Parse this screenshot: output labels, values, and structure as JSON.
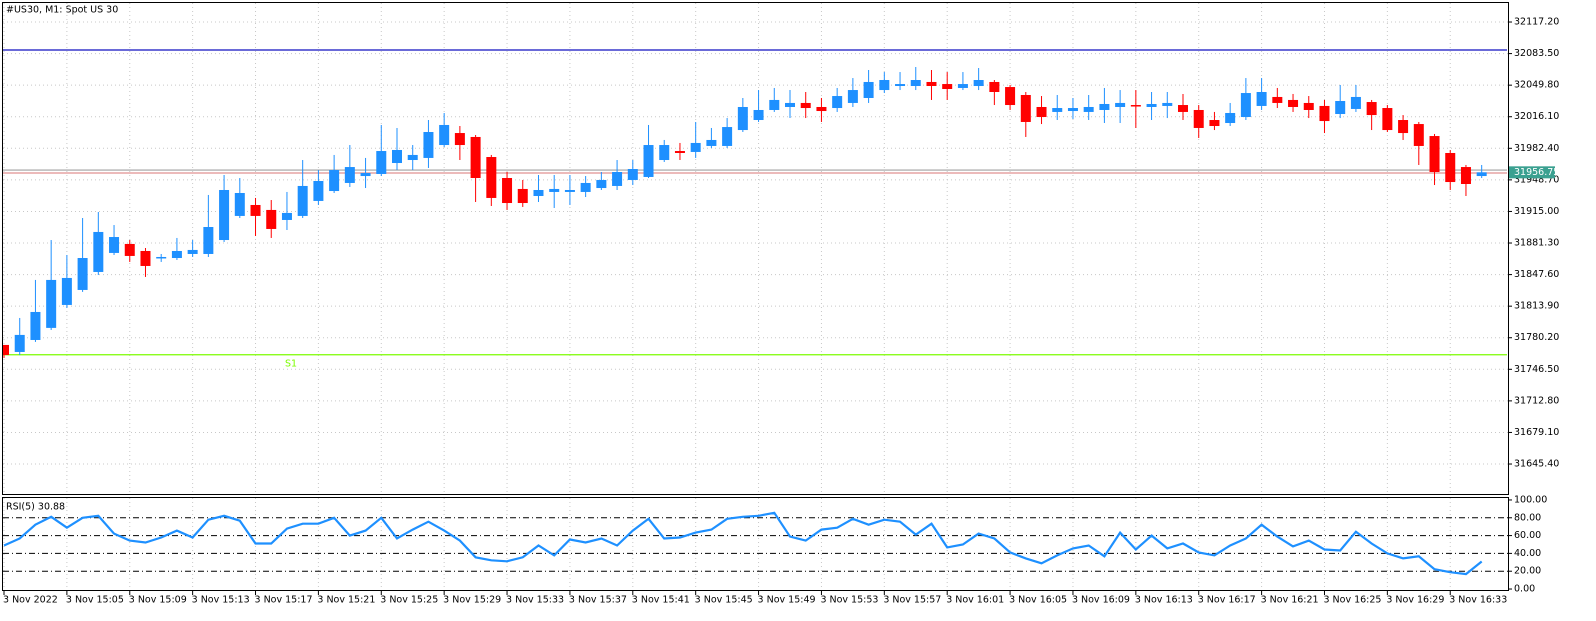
{
  "chart_data": [
    {
      "type": "candlestick",
      "title": "#US30, M1:  Spot US 30",
      "categories": [
        "3 Nov 2022",
        null,
        null,
        null,
        "3 Nov 15:05",
        null,
        null,
        null,
        "3 Nov 15:09",
        null,
        null,
        null,
        "3 Nov 15:13",
        null,
        null,
        null,
        "3 Nov 15:17",
        null,
        null,
        null,
        "3 Nov 15:21",
        null,
        null,
        null,
        "3 Nov 15:25",
        null,
        null,
        null,
        "3 Nov 15:29",
        null,
        null,
        null,
        "3 Nov 15:33",
        null,
        null,
        null,
        "3 Nov 15:37",
        null,
        null,
        null,
        "3 Nov 15:41",
        null,
        null,
        null,
        "3 Nov 15:45",
        null,
        null,
        null,
        "3 Nov 15:49",
        null,
        null,
        null,
        "3 Nov 15:53",
        null,
        null,
        null,
        "3 Nov 15:57",
        null,
        null,
        null,
        "3 Nov 16:01",
        null,
        null,
        null,
        "3 Nov 16:05",
        null,
        null,
        null,
        "3 Nov 16:09",
        null,
        null,
        null,
        "3 Nov 16:13",
        null,
        null,
        null,
        "3 Nov 16:17",
        null,
        null,
        null,
        "3 Nov 16:21",
        null,
        null,
        null,
        "3 Nov 16:25",
        null,
        null,
        null,
        "3 Nov 16:29",
        null,
        null,
        null,
        "3 Nov 16:33",
        null,
        null
      ],
      "open": [
        31772.5,
        31765.0,
        31777.8,
        31790.7,
        31815.2,
        31831.2,
        31850.4,
        31870.7,
        31880.3,
        31872.8,
        31865.3,
        31865.3,
        31869.6,
        31869.6,
        31884.5,
        31910.2,
        31921.9,
        31916.6,
        31905.9,
        31910.2,
        31926.2,
        31936.8,
        31945.4,
        31952.8,
        31955.0,
        31966.7,
        31969.9,
        31972.1,
        31985.9,
        31998.7,
        31994.5,
        31973.1,
        31950.7,
        31939.0,
        31931.5,
        31935.8,
        31935.8,
        31935.8,
        31940.0,
        31942.2,
        31948.6,
        31951.8,
        31969.9,
        31979.5,
        31978.5,
        31984.9,
        31984.9,
        32001.9,
        32012.6,
        32023.3,
        32026.5,
        32030.8,
        32026.5,
        32025.4,
        32030.8,
        32036.1,
        32044.6,
        32048.9,
        32048.9,
        32053.2,
        32051.0,
        32046.8,
        32048.9,
        32053.2,
        32047.8,
        32039.3,
        32026.5,
        32021.2,
        32022.2,
        32021.2,
        32023.3,
        32026.5,
        32028.6,
        32026.5,
        32027.6,
        32028.6,
        32023.3,
        32012.6,
        32009.4,
        32015.8,
        32027.6,
        32037.2,
        32034.0,
        32030.8,
        32027.6,
        32019.0,
        32024.4,
        32031.8,
        32025.4,
        32012.6,
        32008.3,
        31995.5,
        31977.4,
        31962.4,
        31952.8
      ],
      "high": [
        31772.5,
        31801.3,
        31841.9,
        31884.5,
        31868.5,
        31908.0,
        31914.4,
        31900.5,
        31884.5,
        31876.0,
        31869.6,
        31886.7,
        31884.5,
        31932.6,
        31953.9,
        31950.7,
        31929.4,
        31927.2,
        31935.8,
        31969.9,
        31959.2,
        31975.3,
        31985.9,
        31972.1,
        32007.3,
        32004.1,
        31985.9,
        32012.6,
        32020.1,
        32006.2,
        31996.6,
        31975.3,
        31957.1,
        31948.6,
        31953.9,
        31953.9,
        31953.9,
        31952.8,
        31957.1,
        31969.9,
        31969.9,
        32007.3,
        31991.3,
        31988.1,
        32010.5,
        32004.1,
        32014.7,
        32036.1,
        32044.6,
        32046.8,
        32044.6,
        32042.5,
        32036.1,
        32046.8,
        32057.4,
        32066.0,
        32063.8,
        32063.8,
        32069.2,
        32066.0,
        32063.8,
        32063.8,
        32068.1,
        32055.3,
        32050.0,
        32042.5,
        32038.2,
        32039.3,
        32036.1,
        32039.3,
        32046.8,
        32044.6,
        32044.6,
        32042.5,
        32042.5,
        32040.4,
        32028.6,
        32021.2,
        32030.8,
        32057.4,
        32057.4,
        32046.8,
        32040.4,
        32038.2,
        32034.0,
        32050.0,
        32050.0,
        32034.0,
        32028.6,
        32017.9,
        32010.5,
        31997.7,
        31980.6,
        31964.6,
        31964.6
      ],
      "low": [
        31758.6,
        31761.8,
        31775.7,
        31788.5,
        31812.0,
        31829.1,
        31847.2,
        31868.5,
        31861.1,
        31845.1,
        31861.1,
        31863.2,
        31866.4,
        31866.4,
        31882.4,
        31908.0,
        31888.8,
        31886.7,
        31895.2,
        31908.0,
        31921.9,
        31934.7,
        31941.1,
        31940.0,
        31952.8,
        31959.2,
        31959.2,
        31961.4,
        31983.8,
        31969.9,
        31925.1,
        31920.8,
        31916.6,
        31919.8,
        31925.1,
        31918.7,
        31921.9,
        31930.4,
        31937.9,
        31937.9,
        31943.2,
        31950.7,
        31967.8,
        31969.9,
        31972.1,
        31982.7,
        31982.7,
        31999.8,
        32010.5,
        32021.2,
        32014.7,
        32014.7,
        32010.5,
        32021.2,
        32026.5,
        32030.8,
        32041.4,
        32044.6,
        32044.6,
        32034.0,
        32034.0,
        32044.6,
        32044.6,
        32028.6,
        32023.3,
        31994.5,
        32008.3,
        32012.6,
        32013.7,
        32012.6,
        32009.4,
        32009.4,
        32004.1,
        32012.6,
        32014.7,
        32012.6,
        31993.4,
        32001.9,
        32006.2,
        32012.6,
        32023.3,
        32025.4,
        32021.2,
        32014.7,
        31998.7,
        32014.7,
        32021.2,
        32001.9,
        31999.8,
        31991.3,
        31964.6,
        31943.2,
        31937.9,
        31931.5,
        31950.7
      ],
      "close": [
        31761.8,
        31783.2,
        31807.7,
        31841.9,
        31844.0,
        31865.3,
        31893.1,
        31887.7,
        31867.5,
        31856.8,
        31866.4,
        31872.8,
        31873.9,
        31898.4,
        31937.9,
        31934.7,
        31910.2,
        31896.3,
        31913.4,
        31942.2,
        31947.5,
        31959.2,
        31962.4,
        31956.0,
        31979.5,
        31980.6,
        31975.3,
        31999.8,
        32007.3,
        31985.9,
        31950.7,
        31929.4,
        31924.0,
        31924.0,
        31937.9,
        31939.0,
        31937.9,
        31945.4,
        31948.6,
        31957.1,
        31960.3,
        31985.9,
        31985.9,
        31977.4,
        31988.1,
        31991.3,
        32005.1,
        32026.5,
        32023.3,
        32034.0,
        32030.8,
        32025.4,
        32022.2,
        32038.2,
        32044.6,
        32053.2,
        32055.3,
        32051.0,
        32055.3,
        32048.9,
        32045.7,
        32051.0,
        32055.3,
        32042.5,
        32028.6,
        32010.5,
        32015.8,
        32025.4,
        32025.4,
        32026.5,
        32029.7,
        32030.8,
        32027.6,
        32029.7,
        32030.8,
        32021.2,
        32004.1,
        32006.2,
        32020.1,
        32041.4,
        32042.5,
        32030.8,
        32026.5,
        32023.3,
        32011.5,
        32032.9,
        32037.2,
        32017.9,
        32001.9,
        31998.7,
        31984.9,
        31957.1,
        31946.4,
        31944.3,
        31956.75
      ],
      "up_color": "#1e90ff",
      "down_color": "#ff0000",
      "ylim": [
        31613.4,
        32137.5
      ],
      "yticks": [
        {
          "value": 32117.2,
          "label": "32117.20"
        },
        {
          "value": 32083.5,
          "label": "32083.50"
        },
        {
          "value": 32049.8,
          "label": "32049.80"
        },
        {
          "value": 32016.1,
          "label": "32016.10"
        },
        {
          "value": 31982.4,
          "label": "31982.40"
        },
        {
          "value": 31948.7,
          "label": "31948.70"
        },
        {
          "value": 31915,
          "label": "31915.00"
        },
        {
          "value": 31881.3,
          "label": "31881.30"
        },
        {
          "value": 31847.6,
          "label": "31847.60"
        },
        {
          "value": 31813.9,
          "label": "31813.90"
        },
        {
          "value": 31780.2,
          "label": "31780.20"
        },
        {
          "value": 31746.5,
          "label": "31746.50"
        },
        {
          "value": 31712.8,
          "label": "31712.80"
        },
        {
          "value": 31679.1,
          "label": "31679.10"
        },
        {
          "value": 31645.4,
          "label": "31645.40"
        }
      ],
      "levels": [
        {
          "value": 32087.3,
          "color": "#1010c0"
        },
        {
          "value": 31959.2,
          "color": "#a0a0a0"
        },
        {
          "value": 31956.0,
          "color": "#e09090"
        },
        {
          "name": "S1",
          "value": 31762,
          "color": "#7cfc00"
        }
      ],
      "price_box_color": "#3aa090",
      "grid": true
    },
    {
      "type": "line",
      "title": "RSI(5) 30.88",
      "values": [
        48.9,
        56.7,
        72.2,
        81.1,
        68.9,
        80.0,
        82.2,
        62.2,
        54.4,
        52.2,
        57.8,
        65.6,
        57.8,
        77.8,
        82.2,
        76.7,
        51.1,
        51.1,
        67.8,
        73.3,
        73.3,
        80.0,
        60.0,
        65.6,
        80.0,
        56.7,
        66.7,
        75.6,
        65.6,
        54.4,
        35.6,
        32.2,
        31.1,
        35.6,
        48.9,
        37.8,
        55.6,
        52.2,
        56.7,
        48.9,
        65.6,
        78.9,
        56.7,
        57.8,
        63.3,
        66.7,
        78.9,
        81.1,
        82.2,
        85.6,
        58.9,
        54.4,
        66.7,
        68.9,
        78.9,
        72.2,
        77.8,
        75.6,
        61.1,
        73.3,
        46.7,
        50.0,
        62.2,
        56.7,
        41.1,
        34.4,
        28.9,
        37.8,
        45.6,
        48.9,
        36.7,
        63.3,
        44.4,
        60.0,
        45.6,
        51.1,
        41.1,
        37.8,
        48.9,
        56.7,
        72.2,
        58.9,
        47.8,
        54.4,
        44.4,
        43.3,
        64.4,
        51.1,
        40.0,
        34.4,
        36.7,
        22.2,
        18.9,
        16.7,
        30.88
      ],
      "color": "#1e90ff",
      "ylim": [
        -1.1,
        102.2
      ],
      "yticks": [
        {
          "value": 100,
          "label": "100.00"
        },
        {
          "value": 80,
          "label": "80.00"
        },
        {
          "value": 60,
          "label": "60.00"
        },
        {
          "value": 40,
          "label": "40.00"
        },
        {
          "value": 20,
          "label": "20.00"
        },
        {
          "value": 0,
          "label": "0.00"
        }
      ],
      "levels": [
        80,
        60,
        40,
        20
      ]
    }
  ]
}
